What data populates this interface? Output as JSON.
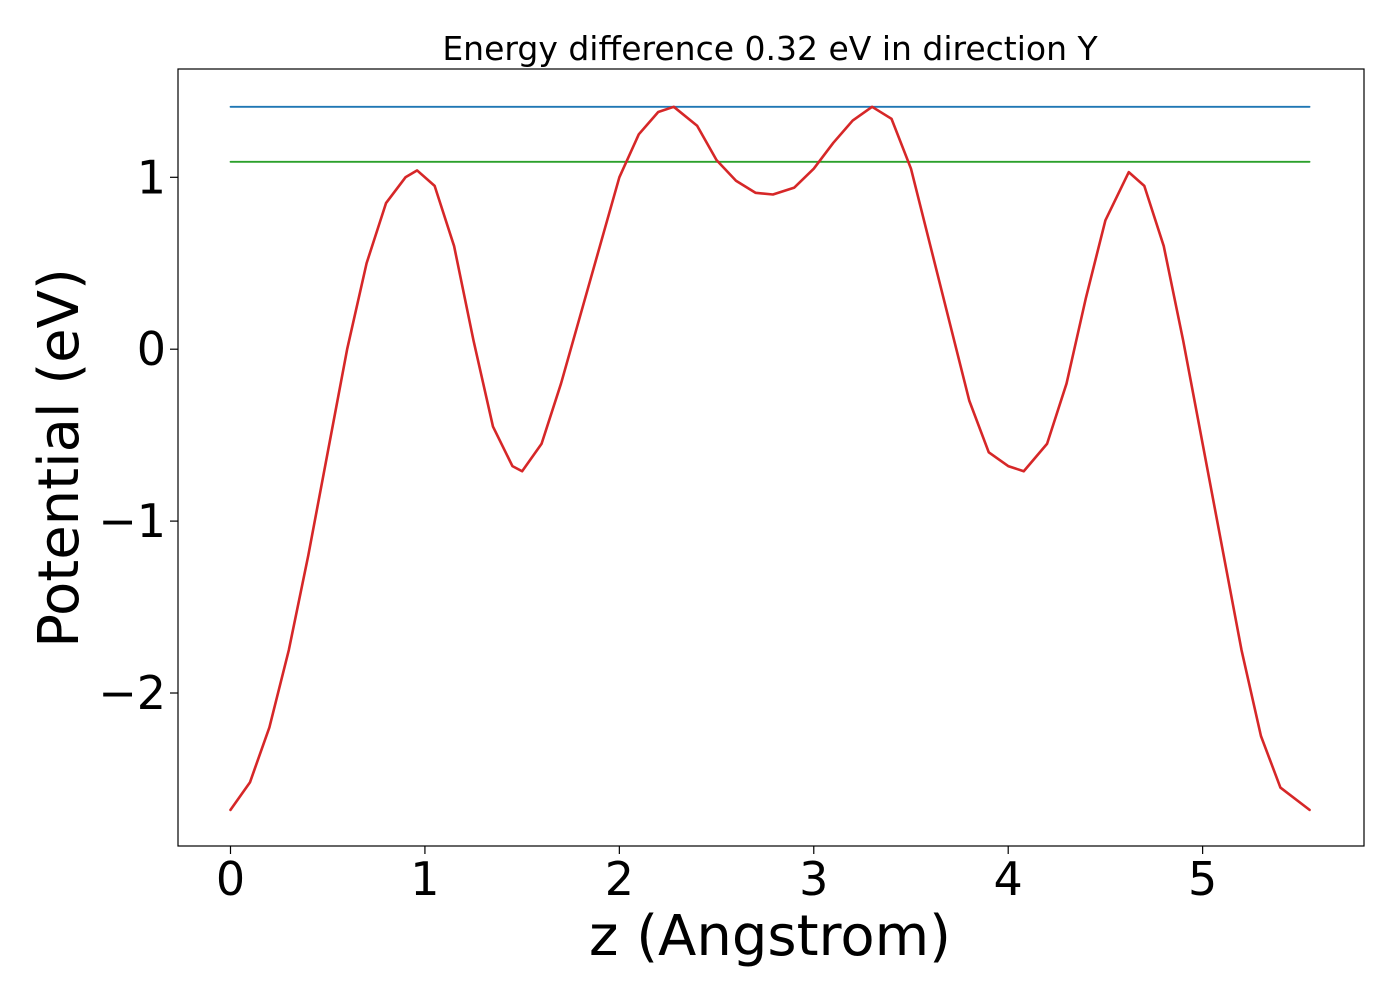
{
  "chart_data": {
    "type": "line",
    "title": "Energy difference 0.32 eV in direction Y",
    "xlabel": "z (Angstrom)",
    "ylabel": "Potential (eV)",
    "xlim": [
      -0.27,
      5.83
    ],
    "ylim": [
      -2.89,
      1.63
    ],
    "xticks": [
      0,
      1,
      2,
      3,
      4,
      5
    ],
    "xtick_labels": [
      "0",
      "1",
      "2",
      "3",
      "4",
      "5"
    ],
    "yticks": [
      -2,
      -1,
      0,
      1
    ],
    "ytick_labels": [
      "−2",
      "−1",
      "0",
      "1"
    ],
    "grid": false,
    "legend": "none",
    "series": [
      {
        "color": "#d62728",
        "x": [
          0,
          0.1,
          0.2,
          0.3,
          0.4,
          0.5,
          0.6,
          0.7,
          0.8,
          0.9,
          0.96,
          1.05,
          1.15,
          1.25,
          1.35,
          1.45,
          1.5,
          1.6,
          1.7,
          1.8,
          1.9,
          2.0,
          2.1,
          2.2,
          2.28,
          2.4,
          2.5,
          2.6,
          2.7,
          2.79,
          2.9,
          3.0,
          3.1,
          3.2,
          3.3,
          3.4,
          3.5,
          3.6,
          3.7,
          3.8,
          3.9,
          4.0,
          4.08,
          4.2,
          4.3,
          4.4,
          4.5,
          4.62,
          4.7,
          4.8,
          4.9,
          5.0,
          5.1,
          5.2,
          5.3,
          5.4,
          5.55
        ],
        "values": [
          -2.68,
          -2.52,
          -2.2,
          -1.75,
          -1.2,
          -0.6,
          0.0,
          0.5,
          0.85,
          1.0,
          1.04,
          0.95,
          0.6,
          0.05,
          -0.45,
          -0.68,
          -0.71,
          -0.55,
          -0.2,
          0.2,
          0.6,
          1.0,
          1.25,
          1.38,
          1.41,
          1.3,
          1.1,
          0.98,
          0.91,
          0.9,
          0.94,
          1.05,
          1.2,
          1.33,
          1.41,
          1.34,
          1.05,
          0.6,
          0.15,
          -0.3,
          -0.6,
          -0.68,
          -0.71,
          -0.55,
          -0.2,
          0.3,
          0.75,
          1.03,
          0.95,
          0.6,
          0.05,
          -0.55,
          -1.15,
          -1.75,
          -2.25,
          -2.55,
          -2.68
        ]
      },
      {
        "color": "#1f77b4",
        "x": [
          0,
          5.55
        ],
        "values": [
          1.41,
          1.41
        ]
      },
      {
        "color": "#2ca02c",
        "x": [
          0,
          5.55
        ],
        "values": [
          1.09,
          1.09
        ]
      }
    ]
  }
}
